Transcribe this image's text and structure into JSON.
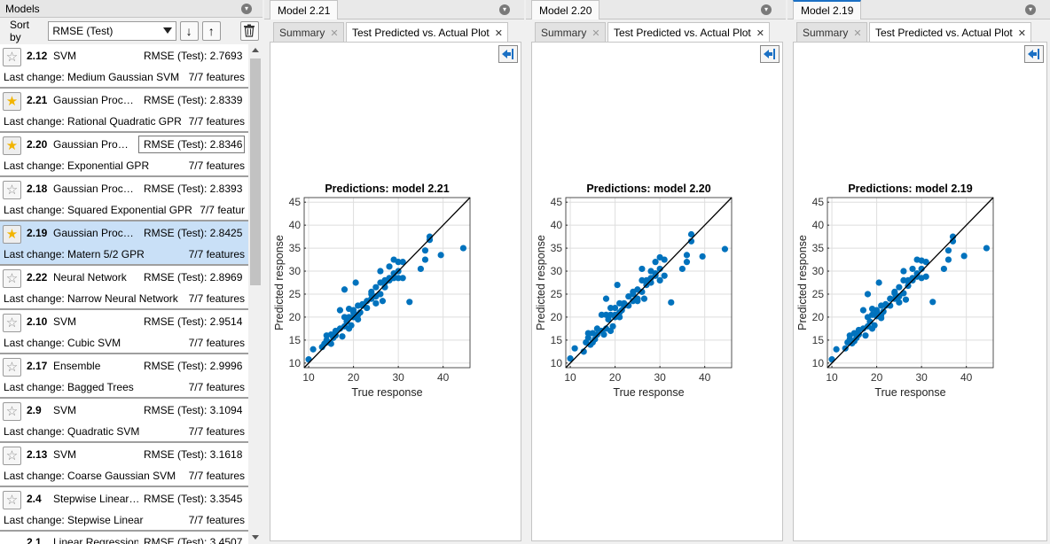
{
  "models_panel": {
    "title": "Models",
    "sort_label": "Sort by",
    "sort_value": "RMSE (Test)",
    "sort_asc_icon": "arrow-down-icon",
    "sort_desc_icon": "arrow-up-icon",
    "delete_icon": "trash-icon"
  },
  "models": [
    {
      "id": "2.12",
      "type": "SVM",
      "rmse": "RMSE (Test): 2.7693",
      "last_change": "Last change: Medium Gaussian SVM",
      "features": "7/7 features",
      "starred": false,
      "selected": false
    },
    {
      "id": "2.21",
      "type": "Gaussian Proc…",
      "rmse": "RMSE (Test): 2.8339",
      "last_change": "Last change: Rational Quadratic GPR",
      "features": "7/7 features",
      "starred": true,
      "selected": false
    },
    {
      "id": "2.20",
      "type": "Gaussian Pro…",
      "rmse": "RMSE (Test): 2.8346",
      "last_change": "Last change: Exponential GPR",
      "features": "7/7 features",
      "starred": true,
      "selected": false,
      "rmse_boxed": true
    },
    {
      "id": "2.18",
      "type": "Gaussian Proc…",
      "rmse": "RMSE (Test): 2.8393",
      "last_change": "Last change: Squared Exponential GPR",
      "features": "7/7 featur",
      "starred": false,
      "selected": false
    },
    {
      "id": "2.19",
      "type": "Gaussian Proc…",
      "rmse": "RMSE (Test): 2.8425",
      "last_change": "Last change: Matern 5/2 GPR",
      "features": "7/7 features",
      "starred": true,
      "selected": true
    },
    {
      "id": "2.22",
      "type": "Neural Network",
      "rmse": "RMSE (Test): 2.8969",
      "last_change": "Last change: Narrow Neural Network",
      "features": "7/7 features",
      "starred": false,
      "selected": false
    },
    {
      "id": "2.10",
      "type": "SVM",
      "rmse": "RMSE (Test): 2.9514",
      "last_change": "Last change: Cubic SVM",
      "features": "7/7 features",
      "starred": false,
      "selected": false
    },
    {
      "id": "2.17",
      "type": "Ensemble",
      "rmse": "RMSE (Test): 2.9996",
      "last_change": "Last change: Bagged Trees",
      "features": "7/7 features",
      "starred": false,
      "selected": false
    },
    {
      "id": "2.9",
      "type": "SVM",
      "rmse": "RMSE (Test): 3.1094",
      "last_change": "Last change: Quadratic SVM",
      "features": "7/7 features",
      "starred": false,
      "selected": false
    },
    {
      "id": "2.13",
      "type": "SVM",
      "rmse": "RMSE (Test): 3.1618",
      "last_change": "Last change: Coarse Gaussian SVM",
      "features": "7/7 features",
      "starred": false,
      "selected": false
    },
    {
      "id": "2.4",
      "type": "Stepwise Linear…",
      "rmse": "RMSE (Test): 3.3545",
      "last_change": "Last change: Stepwise Linear",
      "features": "7/7 features",
      "starred": false,
      "selected": false
    },
    {
      "id": "2.1",
      "type": "Linear Regression",
      "rmse": "RMSE (Test): 3.4507",
      "partial": true
    }
  ],
  "documents": [
    {
      "tab": "Model 2.21",
      "active": false,
      "subtabs": [
        "Summary",
        "Test Predicted vs. Actual Plot"
      ],
      "active_subtab": 1,
      "chart_index": 0
    },
    {
      "tab": "Model 2.20",
      "active": false,
      "subtabs": [
        "Summary",
        "Test Predicted vs. Actual Plot"
      ],
      "active_subtab": 1,
      "chart_index": 1
    },
    {
      "tab": "Model 2.19",
      "active": true,
      "subtabs": [
        "Summary",
        "Test Predicted vs. Actual Plot"
      ],
      "active_subtab": 1,
      "chart_index": 2
    }
  ],
  "colors": {
    "accent": "#1b70c4",
    "marker": "#0072bd",
    "selected_row": "#c9e0f7",
    "star": "#f2b400"
  },
  "chart_data": [
    {
      "type": "scatter",
      "title": "Predictions: model 2.21",
      "xlabel": "True response",
      "ylabel": "Predicted response",
      "xlim": [
        9,
        46
      ],
      "ylim": [
        9,
        46
      ],
      "xticks": [
        10,
        20,
        30,
        40
      ],
      "yticks": [
        10,
        15,
        20,
        25,
        30,
        35,
        40,
        45
      ],
      "grid": true,
      "reference_line": "y = x",
      "series": [
        {
          "x": [
            10,
            11,
            13,
            13.5,
            14,
            14,
            14.5,
            15,
            15,
            15.5,
            16,
            16,
            17,
            17,
            17.5,
            18,
            18,
            18,
            18.5,
            19,
            19,
            19,
            19.5,
            20,
            20,
            20,
            20.5,
            21,
            21,
            21,
            21.5,
            22,
            22,
            23,
            23,
            24,
            24,
            24,
            25,
            25,
            25,
            26,
            26,
            26,
            26.5,
            27,
            27,
            27,
            28,
            28,
            28,
            29,
            29,
            29,
            30,
            30,
            30,
            31,
            31,
            32.5,
            35,
            36,
            36,
            37,
            37,
            39.5,
            44.5
          ],
          "y": [
            10.8,
            13,
            13.5,
            14.2,
            15,
            16,
            14.5,
            14.2,
            16.2,
            15.5,
            16,
            17,
            17.5,
            21.5,
            15.8,
            18,
            20,
            26,
            19,
            17.5,
            20,
            21.8,
            18.2,
            20,
            21,
            21.5,
            27.5,
            19.5,
            22.5,
            20.5,
            21,
            22.5,
            22.8,
            22,
            23.5,
            24,
            25,
            25.5,
            24.5,
            26.5,
            23,
            25,
            27.5,
            30,
            23.5,
            26.5,
            28,
            27.5,
            28,
            28.5,
            31,
            28.5,
            29.5,
            32.5,
            32,
            30,
            28.5,
            32,
            28.5,
            23.3,
            30.5,
            32.5,
            34.5,
            37.5,
            36.8,
            33.5,
            35
          ]
        }
      ]
    },
    {
      "type": "scatter",
      "title": "Predictions: model 2.20",
      "xlabel": "True response",
      "ylabel": "Predicted response",
      "xlim": [
        9,
        46
      ],
      "ylim": [
        9,
        46
      ],
      "xticks": [
        10,
        20,
        30,
        40
      ],
      "yticks": [
        10,
        15,
        20,
        25,
        30,
        35,
        40,
        45
      ],
      "grid": true,
      "reference_line": "y = x",
      "series": [
        {
          "x": [
            10,
            11,
            13,
            13.5,
            14,
            14,
            14.5,
            15,
            15,
            15.5,
            16,
            16,
            17,
            17,
            17.5,
            18,
            18,
            18,
            18.5,
            19,
            19,
            19,
            19.5,
            20,
            20,
            20,
            20.5,
            21,
            21,
            21,
            21.5,
            22,
            22,
            23,
            23,
            24,
            24,
            24,
            25,
            25,
            25,
            26,
            26,
            26,
            26.5,
            27,
            27,
            27,
            28,
            28,
            28,
            29,
            29,
            29,
            30,
            30,
            30,
            31,
            31,
            32.5,
            35,
            36,
            36,
            37,
            37,
            39.5,
            44.5
          ],
          "y": [
            11,
            13.2,
            12.5,
            14.5,
            15.5,
            16.5,
            14,
            14.5,
            16.5,
            15.2,
            16.2,
            17.5,
            17,
            20.5,
            16.2,
            17.5,
            20.5,
            24,
            19.5,
            17,
            20.5,
            22,
            18,
            20.5,
            20,
            22,
            27,
            20,
            23,
            21,
            21.5,
            23,
            22.5,
            22.5,
            24.5,
            23.5,
            25,
            25.5,
            24,
            26,
            23.5,
            25.5,
            28,
            30.5,
            24,
            27,
            27.5,
            28,
            27.5,
            28.5,
            30,
            29,
            29.5,
            32,
            33,
            30.5,
            28,
            32.5,
            29,
            23.2,
            30.5,
            32,
            33.5,
            38,
            36.5,
            33.2,
            34.8
          ]
        }
      ]
    },
    {
      "type": "scatter",
      "title": "Predictions: model 2.19",
      "xlabel": "True response",
      "ylabel": "Predicted response",
      "xlim": [
        9,
        46
      ],
      "ylim": [
        9,
        46
      ],
      "xticks": [
        10,
        20,
        30,
        40
      ],
      "yticks": [
        10,
        15,
        20,
        25,
        30,
        35,
        40,
        45
      ],
      "grid": true,
      "reference_line": "y = x",
      "series": [
        {
          "x": [
            10,
            11,
            13,
            13.5,
            14,
            14,
            14.5,
            15,
            15,
            15.5,
            16,
            16,
            17,
            17,
            17.5,
            18,
            18,
            18,
            18.5,
            19,
            19,
            19,
            19.5,
            20,
            20,
            20,
            20.5,
            21,
            21,
            21,
            21.5,
            22,
            22,
            23,
            23,
            24,
            24,
            24,
            25,
            25,
            25,
            26,
            26,
            26,
            26.5,
            27,
            27,
            27,
            28,
            28,
            28,
            29,
            29,
            29,
            30,
            30,
            30,
            31,
            31,
            32.5,
            35,
            36,
            36,
            37,
            37,
            39.5,
            44.5
          ],
          "y": [
            10.8,
            13,
            13.2,
            14.5,
            15.2,
            16,
            14.3,
            14.8,
            16.5,
            15.5,
            16.2,
            17.2,
            17.5,
            21.5,
            16,
            18,
            20,
            25,
            19,
            17.5,
            20.5,
            21.8,
            18.2,
            20.2,
            21.2,
            21.5,
            27.5,
            19.8,
            22.5,
            20.5,
            21.2,
            22.8,
            22.5,
            22.5,
            24,
            24,
            25.2,
            25.5,
            24.5,
            26.5,
            23.2,
            25.2,
            28,
            30,
            23.8,
            26.8,
            28,
            27.8,
            28,
            28.5,
            30.5,
            28.8,
            29.5,
            32.5,
            32.3,
            30.5,
            28.5,
            32,
            28.8,
            23.3,
            30.5,
            32.5,
            34.5,
            37.5,
            36.5,
            33.3,
            35
          ]
        }
      ]
    }
  ]
}
